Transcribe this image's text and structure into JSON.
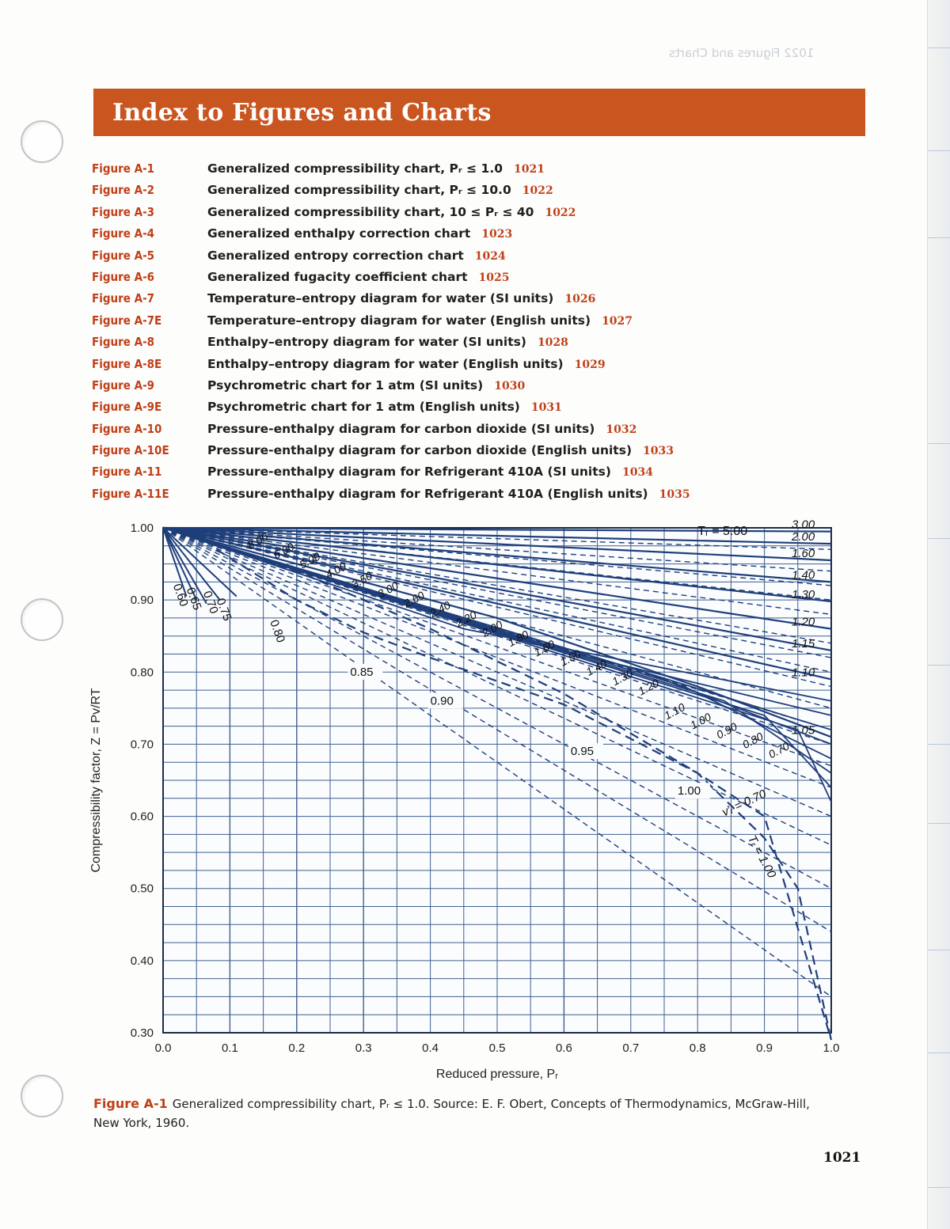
{
  "page": {
    "header_title": "Index to Figures and Charts",
    "page_number": "1021",
    "ghost_header": "1022 Figures and Charts"
  },
  "index_entries": [
    {
      "figure": "Figure A-1",
      "title": "Generalized compressibility chart, Pᵣ ≤ 1.0",
      "page": "1021"
    },
    {
      "figure": "Figure A-2",
      "title": "Generalized compressibility chart, Pᵣ ≤ 10.0",
      "page": "1022"
    },
    {
      "figure": "Figure A-3",
      "title": "Generalized compressibility chart, 10 ≤ Pᵣ ≤ 40",
      "page": "1022"
    },
    {
      "figure": "Figure A-4",
      "title": "Generalized enthalpy correction chart",
      "page": "1023"
    },
    {
      "figure": "Figure A-5",
      "title": "Generalized entropy correction chart",
      "page": "1024"
    },
    {
      "figure": "Figure A-6",
      "title": "Generalized fugacity coefficient chart",
      "page": "1025"
    },
    {
      "figure": "Figure A-7",
      "title": "Temperature–entropy diagram for water (SI units)",
      "page": "1026"
    },
    {
      "figure": "Figure A-7E",
      "title": "Temperature–entropy diagram for water (English units)",
      "page": "1027"
    },
    {
      "figure": "Figure A-8",
      "title": "Enthalpy–entropy diagram for water (SI units)",
      "page": "1028"
    },
    {
      "figure": "Figure A-8E",
      "title": "Enthalpy–entropy diagram for water (English units)",
      "page": "1029"
    },
    {
      "figure": "Figure A-9",
      "title": "Psychrometric chart for 1 atm (SI units)",
      "page": "1030"
    },
    {
      "figure": "Figure A-9E",
      "title": "Psychrometric chart for 1 atm (English units)",
      "page": "1031"
    },
    {
      "figure": "Figure A-10",
      "title": "Pressure-enthalpy diagram for carbon dioxide (SI units)",
      "page": "1032"
    },
    {
      "figure": "Figure A-10E",
      "title": "Pressure-enthalpy diagram for carbon dioxide (English units)",
      "page": "1033"
    },
    {
      "figure": "Figure A-11",
      "title": "Pressure-enthalpy diagram for Refrigerant 410A (SI units)",
      "page": "1034"
    },
    {
      "figure": "Figure A-11E",
      "title": "Pressure-enthalpy diagram for Refrigerant 410A (English units)",
      "page": "1035"
    }
  ],
  "caption": {
    "label": "Figure A-1",
    "text": "Generalized compressibility chart, Pᵣ ≤ 1.0. Source: E. F. Obert, Concepts of Thermodynamics, McGraw-Hill, New York, 1960."
  },
  "colors": {
    "accent": "#c9551f",
    "figure_label": "#c0401a",
    "chart_line": "#1f3f7a",
    "grid": "#3e5f8f"
  },
  "chart_data": {
    "type": "line",
    "xlabel": "Reduced pressure, Pᵣ",
    "ylabel": "Compressibility factor, Z = Pv/RT",
    "xlim": [
      0.0,
      1.0
    ],
    "ylim": [
      0.3,
      1.0
    ],
    "x_ticks": [
      "0.0",
      "0.1",
      "0.2",
      "0.3",
      "0.4",
      "0.5",
      "0.6",
      "0.7",
      "0.8",
      "0.9",
      "1.0"
    ],
    "y_ticks": [
      "0.30",
      "0.40",
      "0.50",
      "0.60",
      "0.70",
      "0.80",
      "0.90",
      "1.00"
    ],
    "legend_title": "Tᵣ = 5.00",
    "isotherms": [
      {
        "label": "3.00",
        "points": [
          [
            0,
            1.0
          ],
          [
            1.0,
            0.995
          ]
        ]
      },
      {
        "label": "2.00",
        "points": [
          [
            0,
            1.0
          ],
          [
            1.0,
            0.978
          ]
        ]
      },
      {
        "label": "1.60",
        "points": [
          [
            0,
            1.0
          ],
          [
            1.0,
            0.955
          ]
        ]
      },
      {
        "label": "1.40",
        "points": [
          [
            0,
            1.0
          ],
          [
            1.0,
            0.925
          ]
        ]
      },
      {
        "label": "1.30",
        "points": [
          [
            0,
            1.0
          ],
          [
            1.0,
            0.898
          ]
        ]
      },
      {
        "label": "1.20",
        "points": [
          [
            0,
            1.0
          ],
          [
            1.0,
            0.86
          ]
        ]
      },
      {
        "label": "1.15",
        "points": [
          [
            0,
            1.0
          ],
          [
            1.0,
            0.83
          ]
        ]
      },
      {
        "label": "1.10",
        "points": [
          [
            0,
            1.0
          ],
          [
            1.0,
            0.79
          ]
        ]
      },
      {
        "label": "1.05",
        "points": [
          [
            0,
            1.0
          ],
          [
            0.5,
            0.875
          ],
          [
            0.8,
            0.78
          ],
          [
            1.0,
            0.71
          ]
        ]
      }
    ],
    "saturated_liquid_Tr_labels": [
      "0.60",
      "0.65",
      "0.70",
      "0.75",
      "0.80",
      "0.85",
      "0.90",
      "0.95",
      "1.00"
    ],
    "reduced_volume_labels": [
      "8.00",
      "6.00",
      "5.00",
      "4.00",
      "3.50",
      "3.00",
      "2.60",
      "2.40",
      "2.20",
      "2.00",
      "1.80",
      "1.60",
      "1.50",
      "1.40",
      "1.30",
      "1.20",
      "1.10",
      "1.00",
      "0.90",
      "0.80",
      "0.70"
    ],
    "reduced_volume_symbol": "v′ᵣ = 0.70",
    "tr_one_curve_label": "Tᵣ = 1.00",
    "tr_one_curve": [
      [
        0,
        1.0
      ],
      [
        0.2,
        0.94
      ],
      [
        0.4,
        0.86
      ],
      [
        0.6,
        0.77
      ],
      [
        0.8,
        0.66
      ],
      [
        0.9,
        0.57
      ],
      [
        0.95,
        0.5
      ],
      [
        1.0,
        0.29
      ]
    ],
    "saturation_dome": [
      [
        0.08,
        0.97
      ],
      [
        0.2,
        0.9
      ],
      [
        0.3,
        0.855
      ],
      [
        0.4,
        0.82
      ],
      [
        0.6,
        0.755
      ],
      [
        0.8,
        0.66
      ],
      [
        0.9,
        0.6
      ],
      [
        1.0,
        0.29
      ]
    ]
  }
}
